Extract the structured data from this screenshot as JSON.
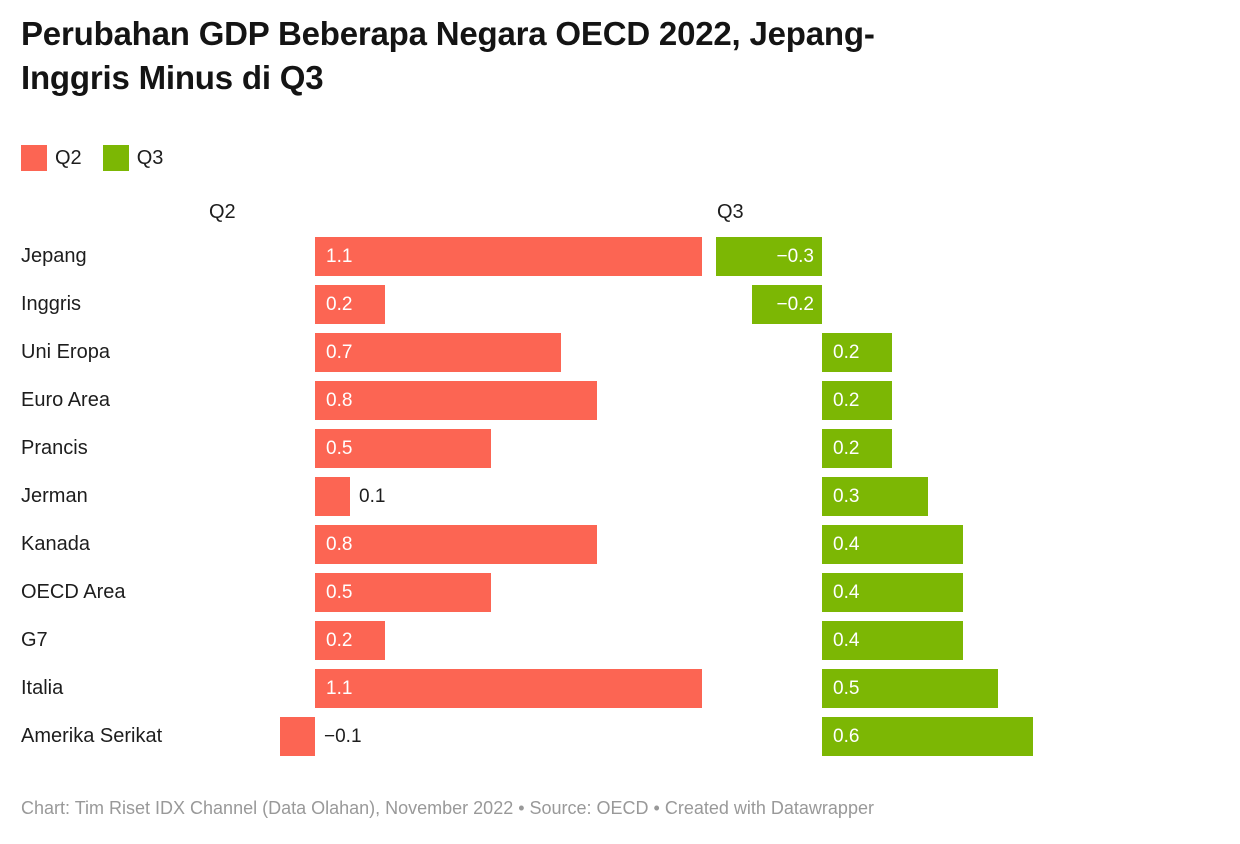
{
  "title": {
    "line1": "Perubahan GDP Beberapa Negara OECD 2022, Jepang-",
    "line2": "Inggris Minus di Q3"
  },
  "legend": {
    "position": "top-left",
    "items": [
      {
        "label": "Q2",
        "color": "#fc6553"
      },
      {
        "label": "Q3",
        "color": "#7cb704"
      }
    ]
  },
  "chart_data": {
    "type": "bar",
    "variant": "split-bars-horizontal",
    "title": "Perubahan GDP Beberapa Negara OECD 2022, Jepang-Inggris Minus di Q3",
    "categories": [
      "Jepang",
      "Inggris",
      "Uni Eropa",
      "Euro Area",
      "Prancis",
      "Jerman",
      "Kanada",
      "OECD Area",
      "G7",
      "Italia",
      "Amerika Serikat"
    ],
    "series": [
      {
        "name": "Q2",
        "color": "#fc6553",
        "values": [
          1.1,
          0.2,
          0.7,
          0.8,
          0.5,
          0.1,
          0.8,
          0.5,
          0.2,
          1.1,
          -0.1
        ]
      },
      {
        "name": "Q3",
        "color": "#7cb704",
        "values": [
          -0.3,
          -0.2,
          0.2,
          0.2,
          0.2,
          0.3,
          0.4,
          0.4,
          0.4,
          0.5,
          0.6
        ]
      }
    ],
    "value_labels_shown": true,
    "value_label_inside_color": "#ffffff",
    "value_label_outside_color": "#1d1d1d",
    "xlim": [
      -0.3,
      1.1
    ],
    "grid": false,
    "legend_position": "top-left"
  },
  "footer": {
    "text": "Chart: Tim Riset IDX Channel (Data Olahan), November 2022 • Source: OECD • Created with Datawrapper"
  }
}
